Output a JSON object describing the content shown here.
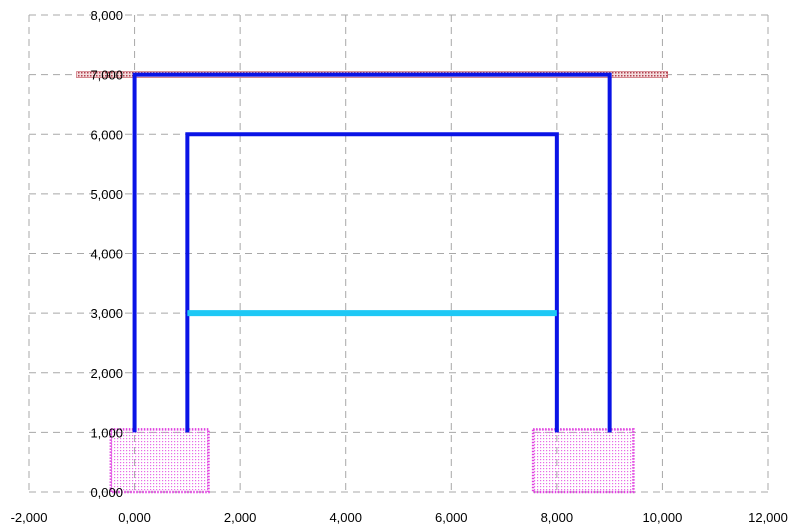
{
  "chart_data": {
    "type": "line",
    "title": "",
    "xlabel": "",
    "ylabel": "",
    "xlim": [
      -2,
      12
    ],
    "ylim": [
      0,
      8
    ],
    "grid": true,
    "x_ticks": [
      {
        "value": -2,
        "label": "-2,000"
      },
      {
        "value": 0,
        "label": "0,000"
      },
      {
        "value": 2,
        "label": "2,000"
      },
      {
        "value": 4,
        "label": "4,000"
      },
      {
        "value": 6,
        "label": "6,000"
      },
      {
        "value": 8,
        "label": "8,000"
      },
      {
        "value": 10,
        "label": "10,000"
      },
      {
        "value": 12,
        "label": "12,000"
      }
    ],
    "y_ticks": [
      {
        "value": 0,
        "label": "0,000"
      },
      {
        "value": 1,
        "label": "1,000"
      },
      {
        "value": 2,
        "label": "2,000"
      },
      {
        "value": 3,
        "label": "3,000"
      },
      {
        "value": 4,
        "label": "4,000"
      },
      {
        "value": 5,
        "label": "5,000"
      },
      {
        "value": 6,
        "label": "6,000"
      },
      {
        "value": 7,
        "label": "7,000"
      },
      {
        "value": 8,
        "label": "8,000"
      }
    ],
    "frames": [
      {
        "color": "#0a14e6",
        "points": [
          [
            0,
            1
          ],
          [
            0,
            7
          ],
          [
            9,
            7
          ],
          [
            9,
            1
          ]
        ]
      },
      {
        "color": "#0a14e6",
        "points": [
          [
            1,
            1
          ],
          [
            1,
            6
          ],
          [
            8,
            6
          ],
          [
            8,
            1
          ]
        ]
      }
    ],
    "beams": [
      {
        "color": "#1ec8f5",
        "points": [
          [
            1,
            3
          ],
          [
            8,
            3
          ]
        ]
      }
    ],
    "bands": [
      {
        "color": "#c0505a",
        "x": [
          -1.1,
          10.1
        ],
        "y": [
          6.95,
          7.05
        ]
      }
    ],
    "footings": [
      {
        "color": "#e040e0",
        "x": [
          -0.45,
          1.4
        ],
        "y": [
          0,
          1.05
        ]
      },
      {
        "color": "#e040e0",
        "x": [
          7.55,
          9.45
        ],
        "y": [
          0,
          1.05
        ]
      }
    ]
  }
}
